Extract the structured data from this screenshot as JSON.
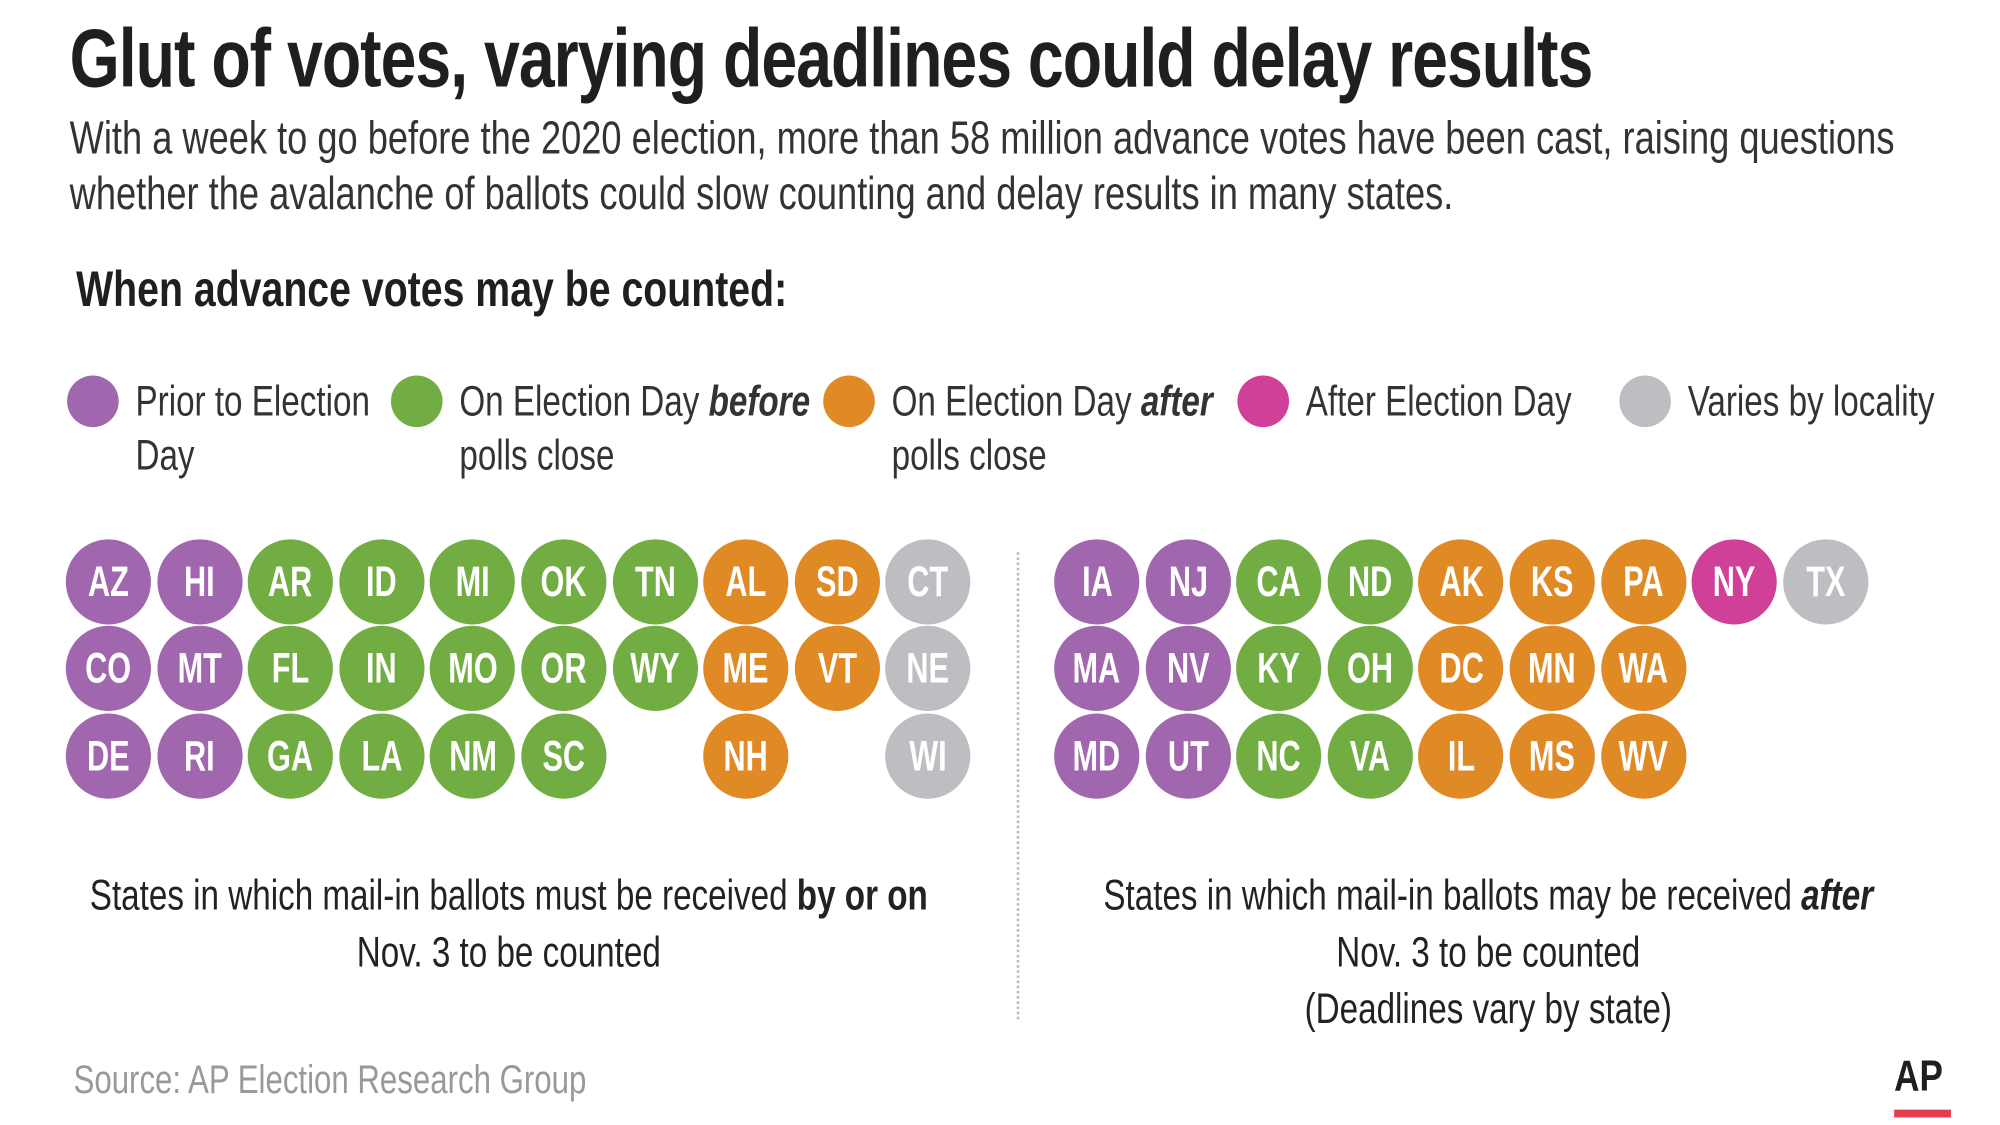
{
  "title": "Glut of votes, varying deadlines could delay results",
  "subtitle": [
    "With a week to go before the 2020 election, more than 58 million advance votes have been cast, raising questions",
    "whether the avalanche of ballots could slow counting and delay results in many states."
  ],
  "heading": "When advance votes may be counted:",
  "legend": [
    {
      "id": "prior",
      "line1": "Prior to Election",
      "line1_em": "",
      "line2": "Day",
      "color": "#a066ae"
    },
    {
      "id": "before",
      "line1": "On Election Day ",
      "line1_em": "before",
      "line2": "polls close",
      "color": "#72ad43"
    },
    {
      "id": "after",
      "line1": "On Election Day ",
      "line1_em": "after",
      "line2": "polls close",
      "color": "#e08a26"
    },
    {
      "id": "afterday",
      "line1": "After Election Day",
      "line1_em": "",
      "line2": "",
      "color": "#d03f98"
    },
    {
      "id": "varies",
      "line1": "Varies by locality",
      "line1_em": "",
      "line2": "",
      "color": "#bdbec2"
    }
  ],
  "groups": [
    {
      "columns": [
        [
          [
            "AZ",
            "prior"
          ],
          [
            "CO",
            "prior"
          ],
          [
            "DE",
            "prior"
          ]
        ],
        [
          [
            "HI",
            "prior"
          ],
          [
            "MT",
            "prior"
          ],
          [
            "RI",
            "prior"
          ]
        ],
        [
          [
            "AR",
            "before"
          ],
          [
            "FL",
            "before"
          ],
          [
            "GA",
            "before"
          ]
        ],
        [
          [
            "ID",
            "before"
          ],
          [
            "IN",
            "before"
          ],
          [
            "LA",
            "before"
          ]
        ],
        [
          [
            "MI",
            "before"
          ],
          [
            "MO",
            "before"
          ],
          [
            "NM",
            "before"
          ]
        ],
        [
          [
            "OK",
            "before"
          ],
          [
            "OR",
            "before"
          ],
          [
            "SC",
            "before"
          ]
        ],
        [
          [
            "TN",
            "before"
          ],
          [
            "WY",
            "before"
          ]
        ],
        [
          [
            "AL",
            "after"
          ],
          [
            "ME",
            "after"
          ],
          [
            "NH",
            "after"
          ]
        ],
        [
          [
            "SD",
            "after"
          ],
          [
            "VT",
            "after"
          ]
        ],
        [
          [
            "CT",
            "varies"
          ],
          [
            "NE",
            "varies"
          ],
          [
            "WI",
            "varies"
          ]
        ]
      ],
      "caption": [
        "States in which mail-in ballots must be received ",
        "by or on",
        "Nov. 3 to be counted",
        ""
      ]
    },
    {
      "columns": [
        [
          [
            "IA",
            "prior"
          ],
          [
            "MA",
            "prior"
          ],
          [
            "MD",
            "prior"
          ]
        ],
        [
          [
            "NJ",
            "prior"
          ],
          [
            "NV",
            "prior"
          ],
          [
            "UT",
            "prior"
          ]
        ],
        [
          [
            "CA",
            "before"
          ],
          [
            "KY",
            "before"
          ],
          [
            "NC",
            "before"
          ]
        ],
        [
          [
            "ND",
            "before"
          ],
          [
            "OH",
            "before"
          ],
          [
            "VA",
            "before"
          ]
        ],
        [
          [
            "AK",
            "after"
          ],
          [
            "DC",
            "after"
          ],
          [
            "IL",
            "after"
          ]
        ],
        [
          [
            "KS",
            "after"
          ],
          [
            "MN",
            "after"
          ],
          [
            "MS",
            "after"
          ]
        ],
        [
          [
            "PA",
            "after"
          ],
          [
            "WA",
            "after"
          ],
          [
            "WV",
            "after"
          ]
        ],
        [
          [
            "NY",
            "afterday"
          ]
        ],
        [
          [
            "TX",
            "varies"
          ]
        ]
      ],
      "caption": [
        "States in which mail-in ballots may be received ",
        "after",
        "Nov. 3 to be counted",
        "(Deadlines vary by state)"
      ]
    }
  ],
  "source": "Source: AP Election Research Group",
  "logo": "AP"
}
